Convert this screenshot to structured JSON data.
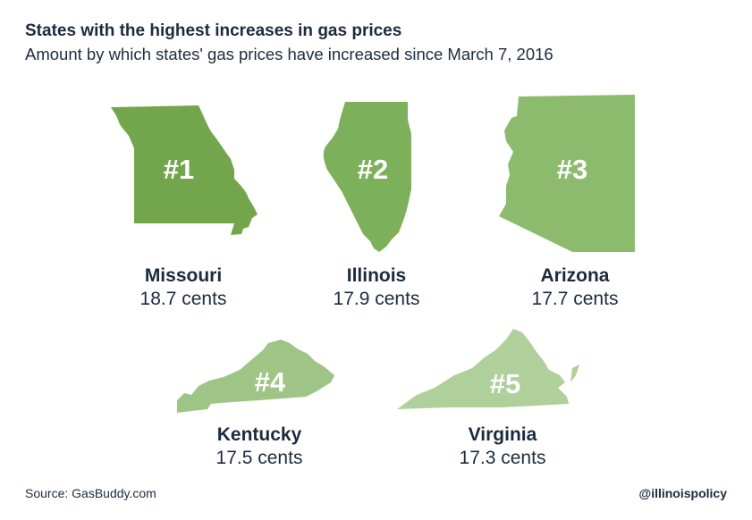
{
  "title": "States with the highest increases in gas prices",
  "subtitle": "Amount by which states' gas prices have increased since March 7, 2016",
  "source": "Source: GasBuddy.com",
  "handle": "@illinoispolicy",
  "chart_data": {
    "type": "table",
    "unit": "cents",
    "items": [
      {
        "rank": "#1",
        "state": "Missouri",
        "value_label": "18.7 cents",
        "value": 18.7,
        "color": "#72a54c"
      },
      {
        "rank": "#2",
        "state": "Illinois",
        "value_label": "17.9 cents",
        "value": 17.9,
        "color": "#7db05a"
      },
      {
        "rank": "#3",
        "state": "Arizona",
        "value_label": "17.7 cents",
        "value": 17.7,
        "color": "#8dbb6d"
      },
      {
        "rank": "#4",
        "state": "Kentucky",
        "value_label": "17.5 cents",
        "value": 17.5,
        "color": "#9ec585"
      },
      {
        "rank": "#5",
        "state": "Virginia",
        "value_label": "17.3 cents",
        "value": 17.3,
        "color": "#afd09b"
      }
    ]
  }
}
